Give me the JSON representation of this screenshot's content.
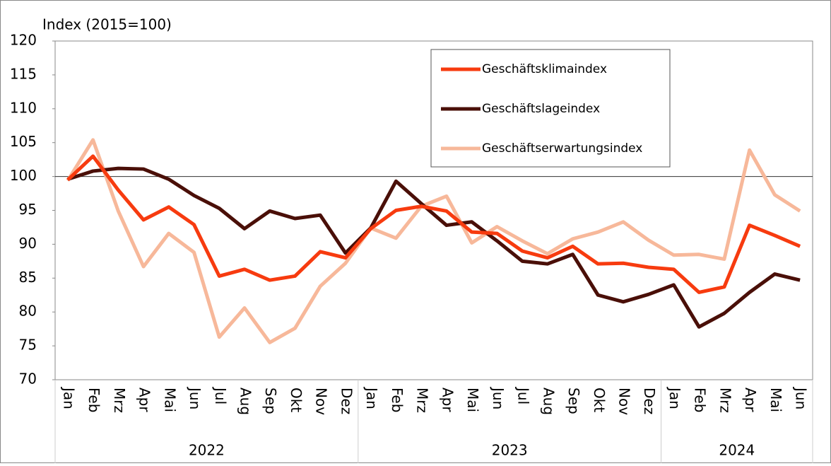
{
  "chart_data": {
    "type": "line",
    "y_axis_label": "Index (2015=100)",
    "categories": [
      "Jan",
      "Feb",
      "Mrz",
      "Apr",
      "Mai",
      "Jun",
      "Jul",
      "Aug",
      "Sep",
      "Okt",
      "Nov",
      "Dez",
      "Jan",
      "Feb",
      "Mrz",
      "Apr",
      "Mai",
      "Jun",
      "Jul",
      "Aug",
      "Sep",
      "Okt",
      "Nov",
      "Dez",
      "Jan",
      "Feb",
      "Mrz",
      "Apr",
      "Mai",
      "Jun"
    ],
    "x_groups": [
      {
        "label": "2022",
        "start": 0,
        "end": 11
      },
      {
        "label": "2023",
        "start": 12,
        "end": 23
      },
      {
        "label": "2024",
        "start": 24,
        "end": 29
      }
    ],
    "series": [
      {
        "name": "Geschäftsklimaindex",
        "color": "#f73b0f",
        "values": [
          99.5,
          103,
          98,
          93.6,
          95.5,
          92.9,
          85.3,
          86.3,
          84.7,
          85.3,
          88.9,
          88.0,
          92.3,
          95.0,
          95.6,
          94.9,
          91.8,
          91.6,
          89.0,
          88.0,
          89.7,
          87.1,
          87.2,
          86.6,
          86.3,
          82.9,
          83.7,
          92.8,
          91.3,
          89.7
        ]
      },
      {
        "name": "Geschäftslageindex",
        "color": "#4a0f08",
        "values": [
          99.6,
          100.8,
          101.2,
          101.1,
          99.6,
          97.2,
          95.3,
          92.3,
          94.9,
          93.8,
          94.3,
          88.7,
          92.4,
          99.3,
          96.0,
          92.8,
          93.3,
          90.5,
          87.5,
          87.1,
          88.5,
          82.5,
          81.5,
          82.6,
          84.0,
          77.8,
          79.8,
          82.9,
          85.6,
          84.7
        ]
      },
      {
        "name": "Geschäftserwartungsindex",
        "color": "#f7b89a",
        "values": [
          99.4,
          105.4,
          94.9,
          86.7,
          91.6,
          88.8,
          76.3,
          80.6,
          75.5,
          77.6,
          83.8,
          87.2,
          92.4,
          90.9,
          95.6,
          97.1,
          90.2,
          92.6,
          90.5,
          88.6,
          90.8,
          91.8,
          93.3,
          90.6,
          88.4,
          88.5,
          87.8,
          103.9,
          97.3,
          94.9
        ]
      }
    ],
    "reference_line": 100,
    "ylim": [
      70,
      120
    ],
    "yticks": [
      70,
      75,
      80,
      85,
      90,
      95,
      100,
      105,
      110,
      115,
      120
    ],
    "grid": false,
    "legend": "top-right"
  }
}
